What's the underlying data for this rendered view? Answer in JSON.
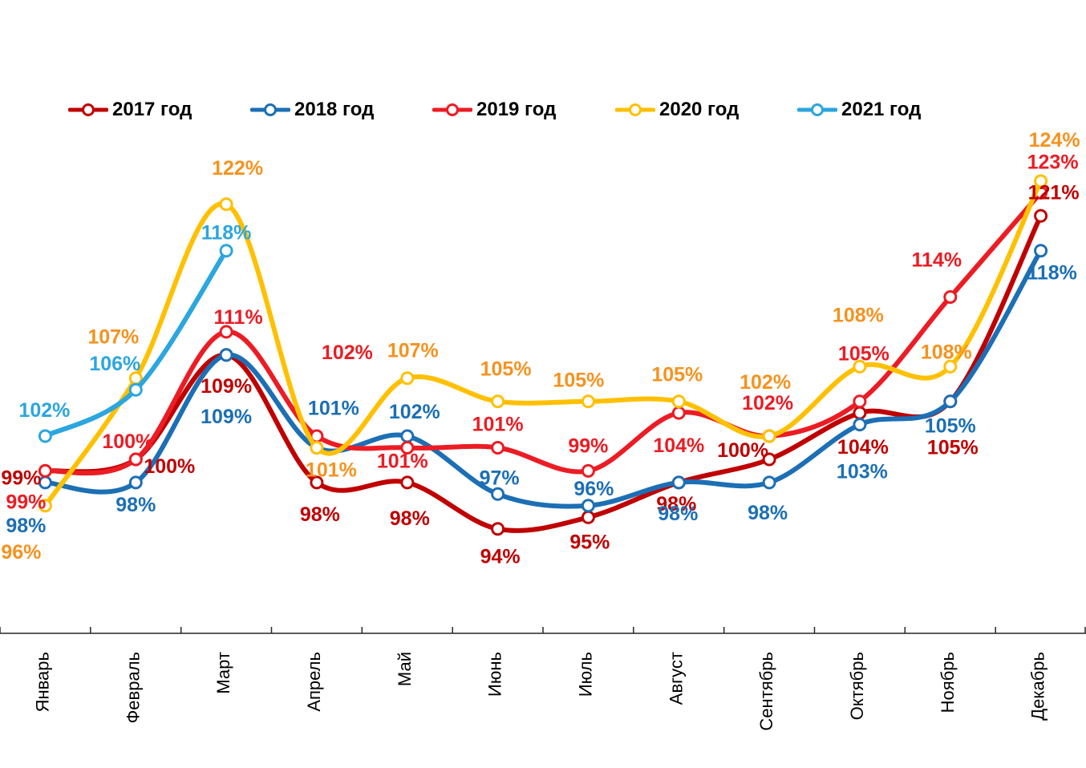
{
  "chart_data": {
    "type": "line",
    "title": "",
    "unit": "%",
    "categories": [
      "Январь",
      "Февраль",
      "Март",
      "Апрель",
      "Май",
      "Июнь",
      "Июль",
      "Август",
      "Сентябрь",
      "Октябрь",
      "Ноябрь",
      "Декабрь"
    ],
    "series": [
      {
        "name": "2017 год",
        "line_color": "#C00000",
        "label_color": "#C00000",
        "values": [
          99,
          100,
          109,
          98,
          98,
          94,
          95,
          98,
          100,
          104,
          105,
          121
        ]
      },
      {
        "name": "2018 год",
        "line_color": "#1C6FB5",
        "label_color": "#1C6FB5",
        "values": [
          98,
          98,
          109,
          101,
          102,
          97,
          96,
          98,
          98,
          103,
          105,
          118
        ]
      },
      {
        "name": "2019 год",
        "line_color": "#EC1C24",
        "label_color": "#EC1C24",
        "values": [
          99,
          100,
          111,
          102,
          101,
          101,
          99,
          104,
          102,
          105,
          114,
          123
        ]
      },
      {
        "name": "2020 год",
        "line_color": "#FFC000",
        "label_color": "#F6921E",
        "values": [
          96,
          107,
          122,
          101,
          107,
          105,
          105,
          105,
          102,
          108,
          108,
          124
        ]
      },
      {
        "name": "2021 год",
        "line_color": "#2BA6DF",
        "label_color": "#2BA6DF",
        "values": [
          102,
          106,
          118,
          null,
          null,
          null,
          null,
          null,
          null,
          null,
          null,
          null
        ]
      }
    ],
    "ylim": [
      85,
      127
    ],
    "smooth": true,
    "marker": "open-circle",
    "grid": false,
    "legend_position": "top",
    "axis_color": "#262626",
    "text_color": "#000000"
  }
}
